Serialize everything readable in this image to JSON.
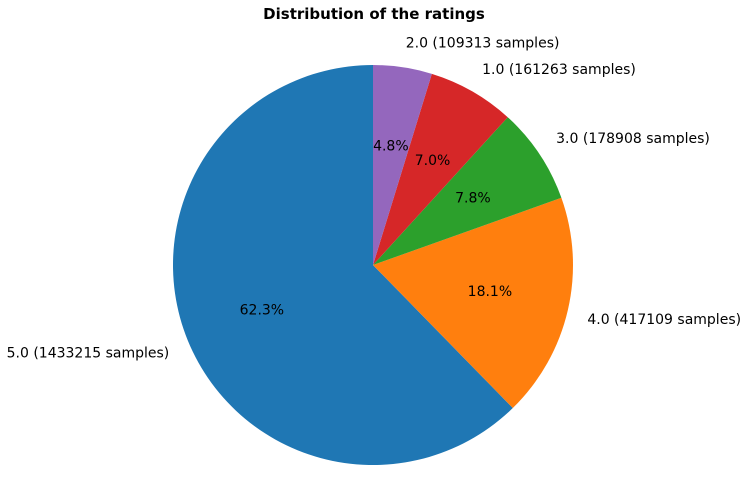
{
  "chart_data": {
    "type": "pie",
    "title": "Distribution of the ratings",
    "slices": [
      {
        "label": "5.0 (1433215 samples)",
        "value": 1433215,
        "percent_label": "62.3%",
        "color": "#1f77b4"
      },
      {
        "label": "4.0 (417109 samples)",
        "value": 417109,
        "percent_label": "18.1%",
        "color": "#ff7f0e"
      },
      {
        "label": "3.0 (178908 samples)",
        "value": 178908,
        "percent_label": "7.8%",
        "color": "#2ca02c"
      },
      {
        "label": "1.0 (161263 samples)",
        "value": 161263,
        "percent_label": "7.0%",
        "color": "#d62728"
      },
      {
        "label": "2.0 (109313 samples)",
        "value": 109313,
        "percent_label": "4.8%",
        "color": "#9467bd"
      }
    ],
    "start_angle_deg": 90,
    "direction": "counterclockwise",
    "legend": "none"
  }
}
